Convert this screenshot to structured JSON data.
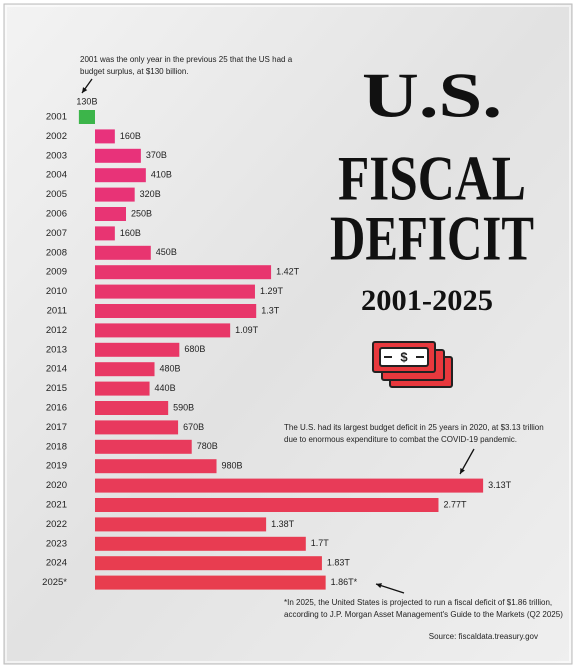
{
  "chart_data": {
    "type": "bar",
    "orientation": "horizontal",
    "title_lines": [
      "U.S.",
      "FISCAL",
      "DEFICIT"
    ],
    "subtitle": "2001-2025",
    "categories": [
      "2001",
      "2002",
      "2003",
      "2004",
      "2005",
      "2006",
      "2007",
      "2008",
      "2009",
      "2010",
      "2011",
      "2012",
      "2013",
      "2014",
      "2015",
      "2016",
      "2017",
      "2018",
      "2019",
      "2020",
      "2021",
      "2022",
      "2023",
      "2024",
      "2025*"
    ],
    "values": [
      -130,
      160,
      370,
      410,
      320,
      250,
      160,
      450,
      1420,
      1290,
      1300,
      1090,
      680,
      480,
      440,
      590,
      670,
      780,
      980,
      3130,
      2770,
      1380,
      1700,
      1830,
      1860
    ],
    "value_labels": [
      "130B",
      "160B",
      "370B",
      "410B",
      "320B",
      "250B",
      "160B",
      "450B",
      "1.42T",
      "1.29T",
      "1.3T",
      "1.09T",
      "680B",
      "480B",
      "440B",
      "590B",
      "670B",
      "780B",
      "980B",
      "3.13T",
      "2.77T",
      "1.38T",
      "1.7T",
      "1.83T",
      "1.86T*"
    ],
    "colors": [
      "#3cb54a",
      "#e8327c",
      "#e8327a",
      "#e83378",
      "#e83376",
      "#e83474",
      "#e83472",
      "#e83570",
      "#e8356e",
      "#e8366c",
      "#e8366a",
      "#e83768",
      "#e83766",
      "#e83864",
      "#e83862",
      "#e83960",
      "#e8395e",
      "#e83a5c",
      "#e83a5a",
      "#e83b58",
      "#e83b56",
      "#e83c54",
      "#e83c52",
      "#e83d50",
      "#e83d4e"
    ],
    "annotations": [
      {
        "lines": [
          "2001 was the only year in the previous 25 that the US had a",
          "budget surplus, at $130 billion."
        ]
      },
      {
        "lines": [
          "The U.S. had its largest budget deficit in 25 years in 2020, at $3.13 trillion",
          "due to enormous expenditure to combat the COVID-19 pandemic."
        ]
      },
      {
        "lines": [
          "*In 2025, the United States is projected to run a fiscal deficit of $1.86 trillion,",
          "according to J.P. Morgan Asset Management's Guide to the Markets (Q2 2025)"
        ]
      }
    ],
    "source": "Source: fiscaldata.treasury.gov"
  }
}
